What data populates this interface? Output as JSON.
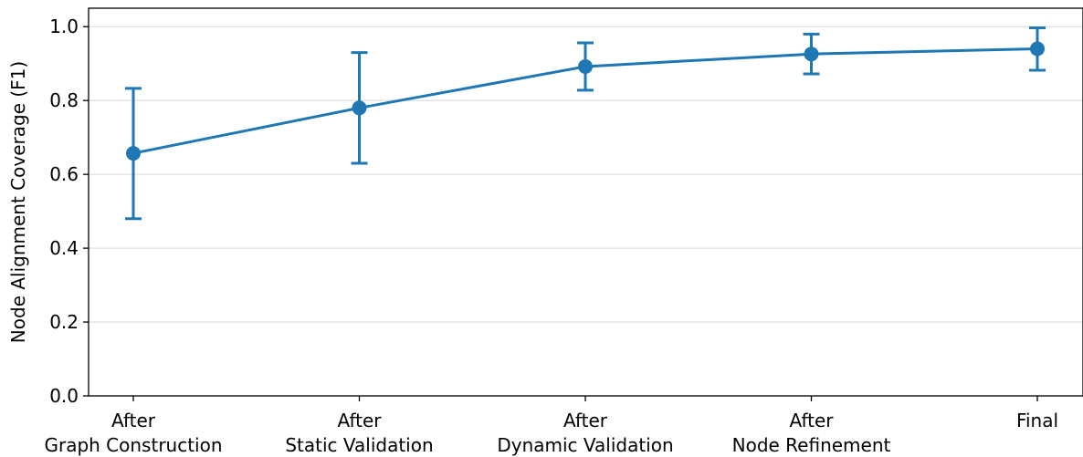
{
  "chart_data": {
    "type": "line",
    "title": "",
    "xlabel": "",
    "ylabel": "Node Alignment Coverage (F1)",
    "categories": [
      [
        "After",
        "Graph Construction"
      ],
      [
        "After",
        "Static Validation"
      ],
      [
        "After",
        "Dynamic Validation"
      ],
      [
        "After",
        "Node Refinement"
      ],
      [
        "Final"
      ]
    ],
    "series": [
      {
        "values": [
          0.657,
          0.78,
          0.892,
          0.926,
          0.94
        ],
        "error_low": [
          0.48,
          0.63,
          0.828,
          0.872,
          0.882
        ],
        "error_high": [
          0.833,
          0.93,
          0.956,
          0.98,
          0.997
        ],
        "color": "#1f77b4"
      }
    ],
    "ylim": [
      0,
      1.05
    ],
    "yticks": [
      0.0,
      0.2,
      0.4,
      0.6,
      0.8,
      1.0
    ],
    "ytick_labels": [
      "0.0",
      "0.2",
      "0.4",
      "0.6",
      "0.8",
      "1.0"
    ],
    "grid": "horizontal",
    "grid_color": "#e0e0e0",
    "legend": "none"
  }
}
